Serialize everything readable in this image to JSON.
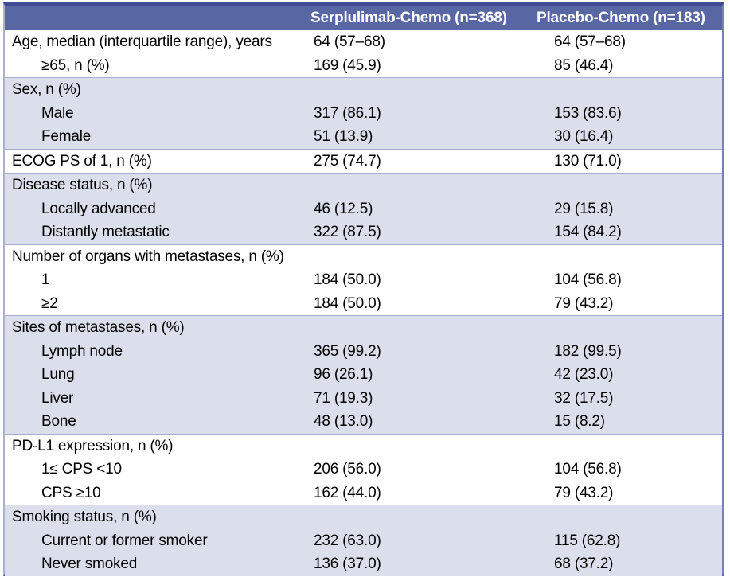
{
  "colors": {
    "header_bg": "#5966a4",
    "header_text": "#ffffff",
    "shaded_row_bg": "#dbdfec",
    "frame_top": "#3f4b92",
    "frame_bottom": "#5c69a8",
    "frame_side": "#a9b1cf",
    "frame_right": "#7681b4",
    "section_line": "#a6adca",
    "text": "#000000"
  },
  "table": {
    "header": {
      "label": "",
      "col1": "Serplulimab-Chemo (n=368)",
      "col2": "Placebo-Chemo (n=183)"
    },
    "rows": [
      {
        "label": "Age, median (interquartile range), years",
        "indent": false,
        "shaded": false,
        "section_start": false,
        "col1": "64 (57–68)",
        "col2": "64 (57–68)"
      },
      {
        "label": "≥65, n (%)",
        "indent": true,
        "shaded": false,
        "section_start": false,
        "col1": "169 (45.9)",
        "col2": "85 (46.4)"
      },
      {
        "label": "Sex, n (%)",
        "indent": false,
        "shaded": true,
        "section_start": true,
        "col1": "",
        "col2": ""
      },
      {
        "label": "Male",
        "indent": true,
        "shaded": true,
        "section_start": false,
        "col1": "317 (86.1)",
        "col2": "153 (83.6)"
      },
      {
        "label": "Female",
        "indent": true,
        "shaded": true,
        "section_start": false,
        "col1": "51 (13.9)",
        "col2": "30 (16.4)"
      },
      {
        "label": "ECOG PS of 1, n (%)",
        "indent": false,
        "shaded": false,
        "section_start": true,
        "col1": "275 (74.7)",
        "col2": "130 (71.0)"
      },
      {
        "label": "Disease status, n (%)",
        "indent": false,
        "shaded": true,
        "section_start": true,
        "col1": "",
        "col2": ""
      },
      {
        "label": "Locally advanced",
        "indent": true,
        "shaded": true,
        "section_start": false,
        "col1": "46 (12.5)",
        "col2": "29 (15.8)"
      },
      {
        "label": "Distantly metastatic",
        "indent": true,
        "shaded": true,
        "section_start": false,
        "col1": "322 (87.5)",
        "col2": "154 (84.2)"
      },
      {
        "label": "Number of organs with metastases, n (%)",
        "indent": false,
        "shaded": false,
        "section_start": true,
        "col1": "",
        "col2": ""
      },
      {
        "label": "1",
        "indent": true,
        "shaded": false,
        "section_start": false,
        "col1": "184 (50.0)",
        "col2": "104 (56.8)"
      },
      {
        "label": "≥2",
        "indent": true,
        "shaded": false,
        "section_start": false,
        "col1": "184 (50.0)",
        "col2": "79 (43.2)"
      },
      {
        "label": "Sites of metastases, n (%)",
        "indent": false,
        "shaded": true,
        "section_start": true,
        "col1": "",
        "col2": ""
      },
      {
        "label": "Lymph node",
        "indent": true,
        "shaded": true,
        "section_start": false,
        "col1": "365 (99.2)",
        "col2": "182 (99.5)"
      },
      {
        "label": "Lung",
        "indent": true,
        "shaded": true,
        "section_start": false,
        "col1": "96 (26.1)",
        "col2": "42 (23.0)"
      },
      {
        "label": "Liver",
        "indent": true,
        "shaded": true,
        "section_start": false,
        "col1": "71 (19.3)",
        "col2": "32 (17.5)"
      },
      {
        "label": "Bone",
        "indent": true,
        "shaded": true,
        "section_start": false,
        "col1": "48 (13.0)",
        "col2": "15 (8.2)"
      },
      {
        "label": "PD-L1 expression, n (%)",
        "indent": false,
        "shaded": false,
        "section_start": true,
        "col1": "",
        "col2": ""
      },
      {
        "label": "1≤ CPS <10",
        "indent": true,
        "shaded": false,
        "section_start": false,
        "col1": "206 (56.0)",
        "col2": "104 (56.8)"
      },
      {
        "label": "CPS ≥10",
        "indent": true,
        "shaded": false,
        "section_start": false,
        "col1": "162 (44.0)",
        "col2": "79 (43.2)"
      },
      {
        "label": "Smoking status, n (%)",
        "indent": false,
        "shaded": true,
        "section_start": true,
        "col1": "",
        "col2": ""
      },
      {
        "label": "Current or former smoker",
        "indent": true,
        "shaded": true,
        "section_start": false,
        "col1": "232 (63.0)",
        "col2": "115 (62.8)"
      },
      {
        "label": "Never smoked",
        "indent": true,
        "shaded": true,
        "section_start": false,
        "col1": "136 (37.0)",
        "col2": "68 (37.2)"
      }
    ]
  }
}
